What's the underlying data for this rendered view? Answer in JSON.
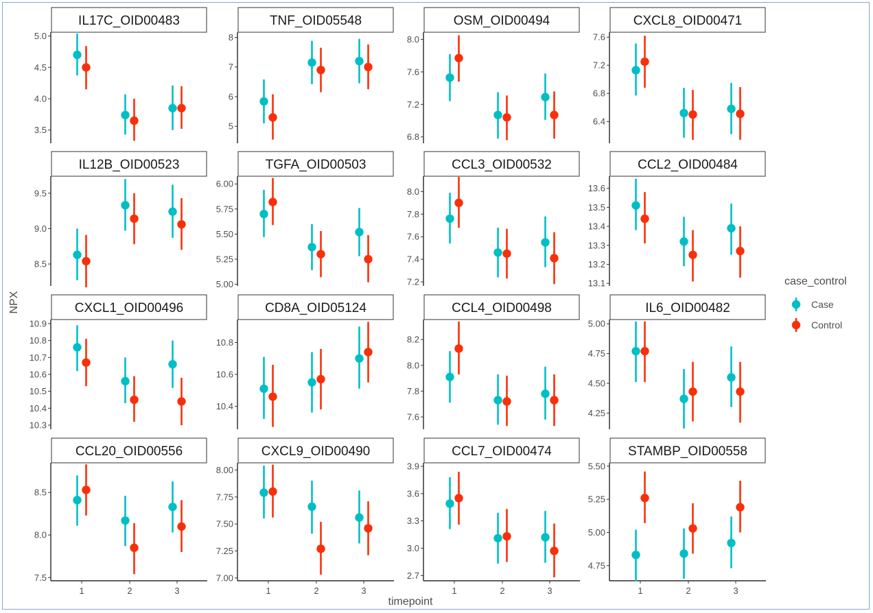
{
  "chart_data": {
    "type": "scatter",
    "xlabel": "timepoint",
    "ylabel": "NPX",
    "x_categories": [
      "1",
      "2",
      "3"
    ],
    "legend": {
      "title": "case_control",
      "placement": "right",
      "entries": [
        {
          "name": "Case",
          "color": "#00BFC4"
        },
        {
          "name": "Control",
          "color": "#F8300A"
        }
      ]
    },
    "grid": false,
    "panels": [
      {
        "title": "IL17C_OID00483",
        "ylim": [
          3.3,
          5.05
        ],
        "yticks": [
          "3.5",
          "4.0",
          "4.5",
          "5.0"
        ],
        "case": [
          [
            4.7,
            4.37,
            5.04
          ],
          [
            3.74,
            3.43,
            4.07
          ],
          [
            3.85,
            3.5,
            4.21
          ]
        ],
        "control": [
          [
            4.5,
            4.15,
            4.84
          ],
          [
            3.65,
            3.33,
            4.0
          ],
          [
            3.85,
            3.52,
            4.2
          ]
        ]
      },
      {
        "title": "TNF_OID05548",
        "ylim": [
          4.45,
          8.15
        ],
        "yticks": [
          "5",
          "6",
          "7",
          "8"
        ],
        "case": [
          [
            5.84,
            5.1,
            6.58
          ],
          [
            7.15,
            6.42,
            7.88
          ],
          [
            7.2,
            6.45,
            7.95
          ]
        ],
        "control": [
          [
            5.3,
            4.55,
            6.08
          ],
          [
            6.9,
            6.15,
            7.65
          ],
          [
            7.0,
            6.25,
            7.76
          ]
        ]
      },
      {
        "title": "OSM_OID00494",
        "ylim": [
          6.73,
          8.08
        ],
        "yticks": [
          "6.8",
          "7.2",
          "7.6",
          "8.0"
        ],
        "case": [
          [
            7.53,
            7.24,
            7.82
          ],
          [
            7.07,
            6.78,
            7.35
          ],
          [
            7.29,
            7.01,
            7.58
          ]
        ],
        "control": [
          [
            7.77,
            7.48,
            8.05
          ],
          [
            7.04,
            6.76,
            7.31
          ],
          [
            7.07,
            6.78,
            7.36
          ]
        ]
      },
      {
        "title": "CXCL8_OID00471",
        "ylim": [
          6.1,
          7.66
        ],
        "yticks": [
          "6.4",
          "6.8",
          "7.2",
          "7.6"
        ],
        "case": [
          [
            7.13,
            6.77,
            7.51
          ],
          [
            6.52,
            6.17,
            6.88
          ],
          [
            6.58,
            6.22,
            6.95
          ]
        ],
        "control": [
          [
            7.25,
            6.88,
            7.62
          ],
          [
            6.5,
            6.14,
            6.85
          ],
          [
            6.51,
            6.14,
            6.89
          ]
        ]
      },
      {
        "title": "IL12B_OID00523",
        "ylim": [
          8.2,
          9.73
        ],
        "yticks": [
          "8.5",
          "9.0",
          "9.5"
        ],
        "case": [
          [
            8.63,
            8.27,
            9.0
          ],
          [
            9.33,
            8.97,
            9.7
          ],
          [
            9.24,
            8.87,
            9.62
          ]
        ],
        "control": [
          [
            8.54,
            8.17,
            8.91
          ],
          [
            9.14,
            8.78,
            9.5
          ],
          [
            9.06,
            8.7,
            9.43
          ]
        ]
      },
      {
        "title": "TGFA_OID00503",
        "ylim": [
          4.99,
          6.07
        ],
        "yticks": [
          "5.00",
          "5.25",
          "5.50",
          "5.75",
          "6.00"
        ],
        "case": [
          [
            5.7,
            5.47,
            5.94
          ],
          [
            5.37,
            5.14,
            5.6
          ],
          [
            5.52,
            5.28,
            5.76
          ]
        ],
        "control": [
          [
            5.82,
            5.59,
            6.06
          ],
          [
            5.3,
            5.07,
            5.53
          ],
          [
            5.25,
            5.02,
            5.49
          ]
        ]
      },
      {
        "title": "CCL3_OID00532",
        "ylim": [
          7.17,
          8.13
        ],
        "yticks": [
          "7.2",
          "7.4",
          "7.6",
          "7.8",
          "8.0"
        ],
        "case": [
          [
            7.76,
            7.54,
            7.99
          ],
          [
            7.46,
            7.24,
            7.68
          ],
          [
            7.55,
            7.33,
            7.78
          ]
        ],
        "control": [
          [
            7.9,
            7.68,
            8.13
          ],
          [
            7.45,
            7.23,
            7.67
          ],
          [
            7.41,
            7.18,
            7.64
          ]
        ]
      },
      {
        "title": "CCL2_OID00484",
        "ylim": [
          13.09,
          13.66
        ],
        "yticks": [
          "13.1",
          "13.2",
          "13.3",
          "13.4",
          "13.5",
          "13.6"
        ],
        "case": [
          [
            13.51,
            13.38,
            13.65
          ],
          [
            13.32,
            13.19,
            13.45
          ],
          [
            13.39,
            13.25,
            13.52
          ]
        ],
        "control": [
          [
            13.44,
            13.31,
            13.58
          ],
          [
            13.25,
            13.11,
            13.38
          ],
          [
            13.27,
            13.13,
            13.4
          ]
        ]
      },
      {
        "title": "CXCL1_OID00496",
        "ylim": [
          10.28,
          10.92
        ],
        "yticks": [
          "10.3",
          "10.4",
          "10.5",
          "10.6",
          "10.7",
          "10.8",
          "10.9"
        ],
        "case": [
          [
            10.76,
            10.62,
            10.89
          ],
          [
            10.56,
            10.43,
            10.7
          ],
          [
            10.66,
            10.52,
            10.8
          ]
        ],
        "control": [
          [
            10.67,
            10.53,
            10.81
          ],
          [
            10.45,
            10.32,
            10.59
          ],
          [
            10.44,
            10.3,
            10.58
          ]
        ]
      },
      {
        "title": "CD8A_OID05124",
        "ylim": [
          10.26,
          10.94
        ],
        "yticks": [
          "10.4",
          "10.6",
          "10.8"
        ],
        "case": [
          [
            10.51,
            10.32,
            10.71
          ],
          [
            10.55,
            10.36,
            10.74
          ],
          [
            10.7,
            10.51,
            10.9
          ]
        ],
        "control": [
          [
            10.46,
            10.27,
            10.66
          ],
          [
            10.57,
            10.38,
            10.76
          ],
          [
            10.74,
            10.55,
            10.93
          ]
        ]
      },
      {
        "title": "CCL4_OID00498",
        "ylim": [
          7.51,
          8.35
        ],
        "yticks": [
          "7.6",
          "7.8",
          "8.0",
          "8.2"
        ],
        "case": [
          [
            7.91,
            7.71,
            8.11
          ],
          [
            7.73,
            7.54,
            7.93
          ],
          [
            7.78,
            7.58,
            7.99
          ]
        ],
        "control": [
          [
            8.13,
            7.93,
            8.34
          ],
          [
            7.72,
            7.53,
            7.92
          ],
          [
            7.73,
            7.53,
            7.93
          ]
        ]
      },
      {
        "title": "IL6_OID00482",
        "ylim": [
          4.12,
          5.03
        ],
        "yticks": [
          "4.25",
          "4.50",
          "4.75",
          "5.00"
        ],
        "case": [
          [
            4.77,
            4.51,
            5.02
          ],
          [
            4.37,
            4.12,
            4.62
          ],
          [
            4.55,
            4.3,
            4.81
          ]
        ],
        "control": [
          [
            4.77,
            4.51,
            5.02
          ],
          [
            4.43,
            4.18,
            4.68
          ],
          [
            4.43,
            4.17,
            4.68
          ]
        ]
      },
      {
        "title": "CCL20_OID00556",
        "ylim": [
          7.47,
          8.84
        ],
        "yticks": [
          "7.5",
          "8.0",
          "8.5"
        ],
        "case": [
          [
            8.41,
            8.11,
            8.7
          ],
          [
            8.17,
            7.87,
            8.46
          ],
          [
            8.33,
            8.03,
            8.63
          ]
        ],
        "control": [
          [
            8.53,
            8.23,
            8.83
          ],
          [
            7.85,
            7.54,
            8.14
          ],
          [
            8.1,
            7.8,
            8.41
          ]
        ]
      },
      {
        "title": "CXCL9_OID00490",
        "ylim": [
          6.98,
          8.06
        ],
        "yticks": [
          "7.00",
          "7.25",
          "7.50",
          "7.75",
          "8.00"
        ],
        "case": [
          [
            7.79,
            7.55,
            8.04
          ],
          [
            7.66,
            7.41,
            7.9
          ],
          [
            7.56,
            7.32,
            7.81
          ]
        ],
        "control": [
          [
            7.8,
            7.56,
            8.05
          ],
          [
            7.27,
            7.03,
            7.52
          ],
          [
            7.46,
            7.21,
            7.71
          ]
        ]
      },
      {
        "title": "CCL7_OID00474",
        "ylim": [
          2.65,
          3.93
        ],
        "yticks": [
          "2.7",
          "3.0",
          "3.3",
          "3.6",
          "3.9"
        ],
        "case": [
          [
            3.49,
            3.21,
            3.78
          ],
          [
            3.11,
            2.83,
            3.39
          ],
          [
            3.12,
            2.84,
            3.41
          ]
        ],
        "control": [
          [
            3.55,
            3.26,
            3.84
          ],
          [
            3.13,
            2.85,
            3.43
          ],
          [
            2.97,
            2.68,
            3.27
          ]
        ]
      },
      {
        "title": "STAMBP_OID00558",
        "ylim": [
          4.64,
          5.52
        ],
        "yticks": [
          "4.75",
          "5.00",
          "5.25",
          "5.50"
        ],
        "case": [
          [
            4.83,
            4.63,
            5.02
          ],
          [
            4.84,
            4.65,
            5.03
          ],
          [
            4.92,
            4.73,
            5.12
          ]
        ],
        "control": [
          [
            5.26,
            5.07,
            5.46
          ],
          [
            5.03,
            4.84,
            5.22
          ],
          [
            5.19,
            5.0,
            5.39
          ]
        ]
      }
    ]
  }
}
